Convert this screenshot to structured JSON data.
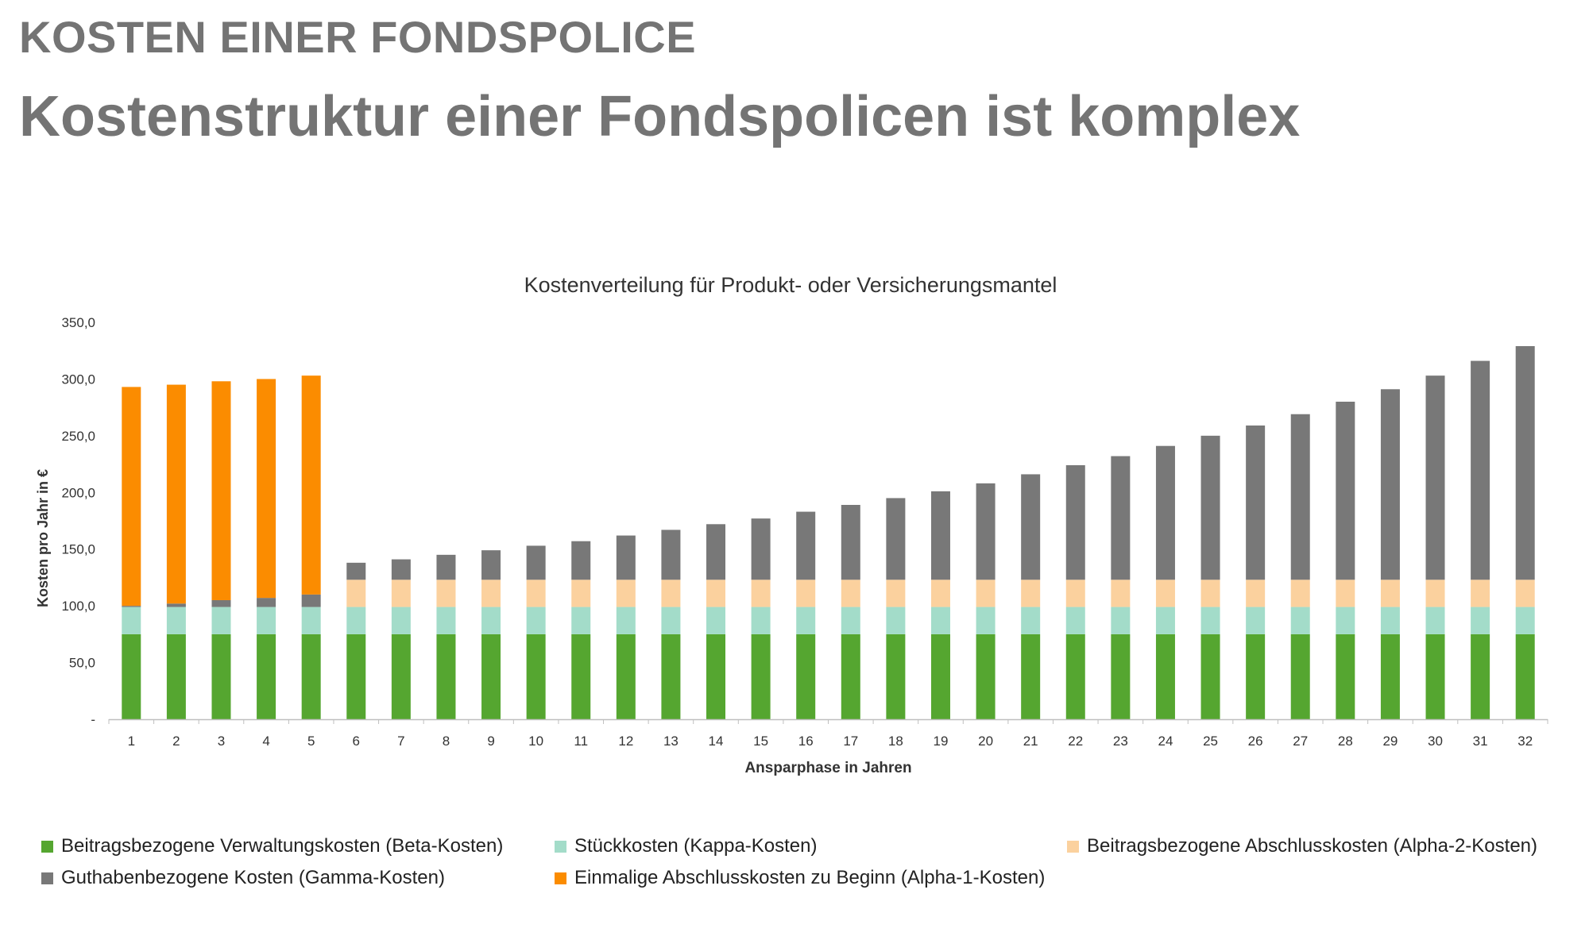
{
  "slide": {
    "kicker": "KOSTEN EINER FONDSPOLICE",
    "title": "Kostenstruktur einer Fondspolicen ist komplex"
  },
  "colors": {
    "beta": "#55a630",
    "kappa": "#a3dcc9",
    "alpha2": "#fbd19e",
    "gamma": "#787878",
    "alpha1": "#fb8c00",
    "axis": "#bfbfbf",
    "text": "#333333",
    "heading": "#747474"
  },
  "chart_data": {
    "type": "bar",
    "stacked": true,
    "title": "Kostenverteilung für Produkt- oder Versicherungsmantel",
    "xlabel": "Ansparphase in Jahren",
    "ylabel": "Kosten pro Jahr in €",
    "ylim": [
      0,
      350
    ],
    "yticks": [
      0,
      50,
      100,
      150,
      200,
      250,
      300,
      350
    ],
    "ytick_labels": [
      "-",
      "50,0",
      "100,0",
      "150,0",
      "200,0",
      "250,0",
      "300,0",
      "350,0"
    ],
    "grid": false,
    "legend_position": "bottom",
    "categories": [
      "1",
      "2",
      "3",
      "4",
      "5",
      "6",
      "7",
      "8",
      "9",
      "10",
      "11",
      "12",
      "13",
      "14",
      "15",
      "16",
      "17",
      "18",
      "19",
      "20",
      "21",
      "22",
      "23",
      "24",
      "25",
      "26",
      "27",
      "28",
      "29",
      "30",
      "31",
      "32"
    ],
    "series": [
      {
        "name": "Beitragsbezogene Verwaltungskosten (Beta-Kosten)",
        "color_key": "beta",
        "values": [
          75,
          75,
          75,
          75,
          75,
          75,
          75,
          75,
          75,
          75,
          75,
          75,
          75,
          75,
          75,
          75,
          75,
          75,
          75,
          75,
          75,
          75,
          75,
          75,
          75,
          75,
          75,
          75,
          75,
          75,
          75,
          75
        ]
      },
      {
        "name": "Stückkosten (Kappa-Kosten)",
        "color_key": "kappa",
        "values": [
          24,
          24,
          24,
          24,
          24,
          24,
          24,
          24,
          24,
          24,
          24,
          24,
          24,
          24,
          24,
          24,
          24,
          24,
          24,
          24,
          24,
          24,
          24,
          24,
          24,
          24,
          24,
          24,
          24,
          24,
          24,
          24
        ]
      },
      {
        "name": "Beitragsbezogene Abschlusskosten (Alpha-2-Kosten)",
        "color_key": "alpha2",
        "values": [
          0,
          0,
          0,
          0,
          0,
          24,
          24,
          24,
          24,
          24,
          24,
          24,
          24,
          24,
          24,
          24,
          24,
          24,
          24,
          24,
          24,
          24,
          24,
          24,
          24,
          24,
          24,
          24,
          24,
          24,
          24,
          24
        ]
      },
      {
        "name": "Guthabenbezogene Kosten (Gamma-Kosten)",
        "color_key": "gamma",
        "values": [
          1,
          3,
          6,
          8,
          11,
          15,
          18,
          22,
          26,
          30,
          34,
          39,
          44,
          49,
          54,
          60,
          66,
          72,
          78,
          85,
          93,
          101,
          109,
          118,
          127,
          136,
          146,
          157,
          168,
          180,
          193,
          206
        ]
      },
      {
        "name": "Einmalige Abschlusskosten zu Beginn (Alpha-1-Kosten)",
        "color_key": "alpha1",
        "values": [
          193,
          193,
          193,
          193,
          193,
          0,
          0,
          0,
          0,
          0,
          0,
          0,
          0,
          0,
          0,
          0,
          0,
          0,
          0,
          0,
          0,
          0,
          0,
          0,
          0,
          0,
          0,
          0,
          0,
          0,
          0,
          0
        ]
      }
    ]
  }
}
